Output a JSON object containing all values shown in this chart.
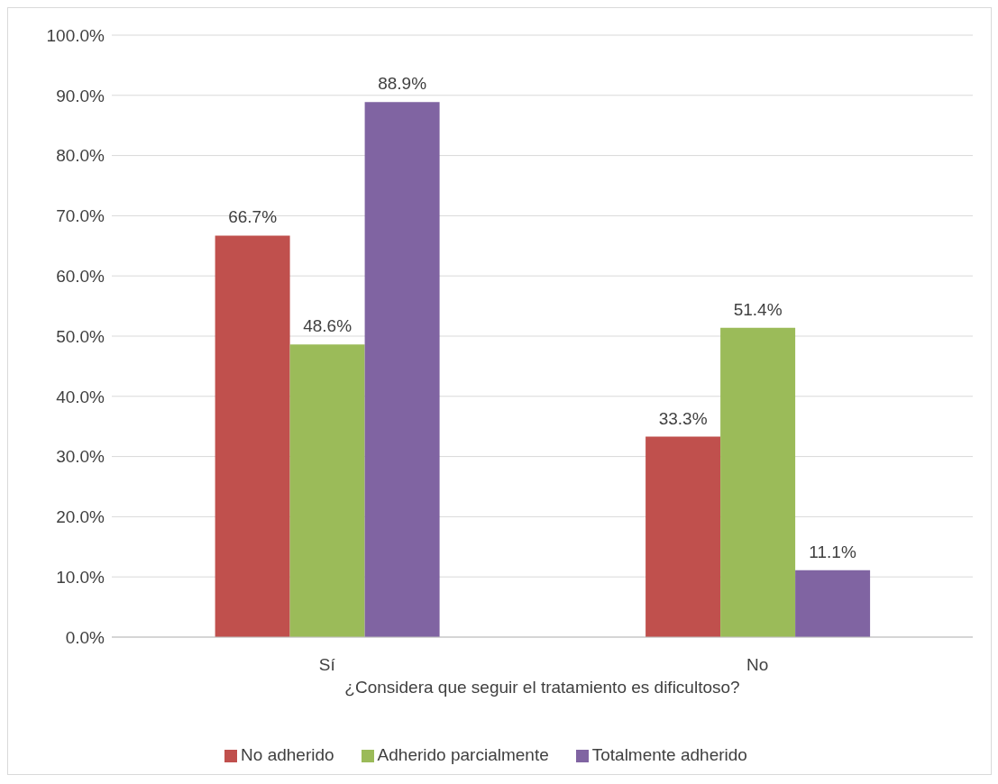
{
  "chart_data": {
    "type": "bar",
    "xlabel": "¿Considera que seguir el tratamiento es dificultoso?",
    "categories": [
      "Sí",
      "No"
    ],
    "series": [
      {
        "name": "No adherido",
        "color": "#c0504d",
        "values": [
          66.7,
          33.3
        ],
        "value_labels": [
          "66.7%",
          "33.3%"
        ]
      },
      {
        "name": "Adherido parcialmente",
        "color": "#9bbb59",
        "values": [
          48.6,
          51.4
        ],
        "value_labels": [
          "48.6%",
          "51.4%"
        ]
      },
      {
        "name": "Totalmente adherido",
        "color": "#8064a2",
        "values": [
          88.9,
          11.1
        ],
        "value_labels": [
          "88.9%",
          "11.1%"
        ]
      }
    ],
    "ylim": [
      0,
      100
    ],
    "yticks": [
      {
        "value": 0,
        "label": "0.0%"
      },
      {
        "value": 10,
        "label": "10.0%"
      },
      {
        "value": 20,
        "label": "20.0%"
      },
      {
        "value": 30,
        "label": "30.0%"
      },
      {
        "value": 40,
        "label": "40.0%"
      },
      {
        "value": 50,
        "label": "50.0%"
      },
      {
        "value": 60,
        "label": "60.0%"
      },
      {
        "value": 70,
        "label": "70.0%"
      },
      {
        "value": 80,
        "label": "80.0%"
      },
      {
        "value": 90,
        "label": "90.0%"
      },
      {
        "value": 100,
        "label": "100.0%"
      }
    ],
    "grid": "y",
    "legend": "bottom"
  }
}
